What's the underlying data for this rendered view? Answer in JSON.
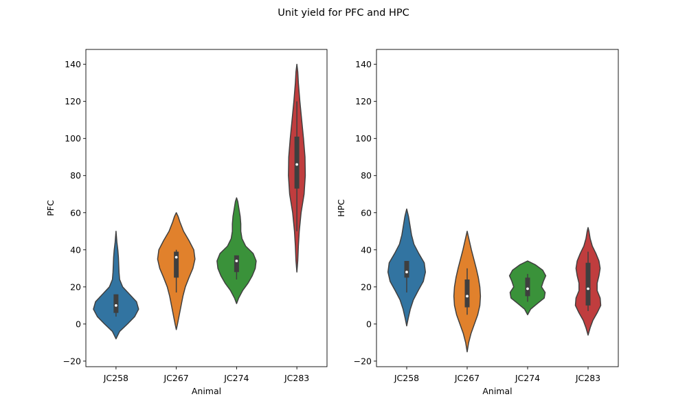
{
  "figure": {
    "title": "Unit yield for PFC and HPC"
  },
  "chart_data": [
    {
      "type": "violin",
      "title": "",
      "xlabel": "Animal",
      "ylabel": "PFC",
      "ylim": [
        -23,
        148
      ],
      "yticks": [
        -20,
        0,
        20,
        40,
        60,
        80,
        100,
        120,
        140
      ],
      "grid": false,
      "categories": [
        "JC258",
        "JC267",
        "JC274",
        "JC283"
      ],
      "violins": [
        {
          "category": "JC258",
          "color": "#3274a1",
          "range": [
            -8,
            50
          ],
          "median": 10,
          "q1": 6,
          "q3": 16,
          "whisker": [
            4,
            16
          ],
          "half_widths": [
            [
              -8,
              0.0
            ],
            [
              -4,
              0.12
            ],
            [
              0,
              0.38
            ],
            [
              4,
              0.62
            ],
            [
              8,
              0.75
            ],
            [
              12,
              0.68
            ],
            [
              16,
              0.45
            ],
            [
              20,
              0.22
            ],
            [
              24,
              0.12
            ],
            [
              28,
              0.1
            ],
            [
              32,
              0.09
            ],
            [
              36,
              0.08
            ],
            [
              40,
              0.06
            ],
            [
              44,
              0.03
            ],
            [
              48,
              0.01
            ],
            [
              50,
              0.0
            ]
          ]
        },
        {
          "category": "JC267",
          "color": "#e1812c",
          "range": [
            -3,
            60
          ],
          "median": 36,
          "q1": 25,
          "q3": 39,
          "whisker": [
            17,
            40
          ],
          "half_widths": [
            [
              -3,
              0.0
            ],
            [
              0,
              0.04
            ],
            [
              5,
              0.1
            ],
            [
              10,
              0.16
            ],
            [
              15,
              0.22
            ],
            [
              20,
              0.3
            ],
            [
              25,
              0.42
            ],
            [
              30,
              0.55
            ],
            [
              35,
              0.62
            ],
            [
              40,
              0.58
            ],
            [
              45,
              0.42
            ],
            [
              50,
              0.24
            ],
            [
              55,
              0.12
            ],
            [
              58,
              0.06
            ],
            [
              60,
              0.0
            ]
          ]
        },
        {
          "category": "JC274",
          "color": "#3a923a",
          "range": [
            11,
            68
          ],
          "median": 34,
          "q1": 28,
          "q3": 37,
          "whisker": [
            24,
            37
          ],
          "half_widths": [
            [
              11,
              0.0
            ],
            [
              14,
              0.07
            ],
            [
              18,
              0.2
            ],
            [
              22,
              0.38
            ],
            [
              26,
              0.52
            ],
            [
              30,
              0.62
            ],
            [
              34,
              0.65
            ],
            [
              38,
              0.55
            ],
            [
              42,
              0.3
            ],
            [
              46,
              0.18
            ],
            [
              50,
              0.14
            ],
            [
              54,
              0.14
            ],
            [
              58,
              0.12
            ],
            [
              62,
              0.08
            ],
            [
              66,
              0.04
            ],
            [
              68,
              0.0
            ]
          ]
        },
        {
          "category": "JC283",
          "color": "#c03d3e",
          "range": [
            28,
            140
          ],
          "median": 86,
          "q1": 73,
          "q3": 101,
          "whisker": [
            50,
            120
          ],
          "half_widths": [
            [
              28,
              0.0
            ],
            [
              34,
              0.03
            ],
            [
              42,
              0.05
            ],
            [
              50,
              0.08
            ],
            [
              60,
              0.14
            ],
            [
              70,
              0.24
            ],
            [
              80,
              0.28
            ],
            [
              90,
              0.27
            ],
            [
              100,
              0.22
            ],
            [
              110,
              0.16
            ],
            [
              120,
              0.1
            ],
            [
              130,
              0.05
            ],
            [
              136,
              0.03
            ],
            [
              140,
              0.0
            ]
          ]
        }
      ]
    },
    {
      "type": "violin",
      "title": "",
      "xlabel": "Animal",
      "ylabel": "HPC",
      "ylim": [
        -23,
        148
      ],
      "yticks": [
        -20,
        0,
        20,
        40,
        60,
        80,
        100,
        120,
        140
      ],
      "grid": false,
      "categories": [
        "JC258",
        "JC267",
        "JC274",
        "JC283"
      ],
      "violins": [
        {
          "category": "JC258",
          "color": "#3274a1",
          "range": [
            -1,
            62
          ],
          "median": 28,
          "q1": 25,
          "q3": 34,
          "whisker": [
            17,
            34
          ],
          "half_widths": [
            [
              -1,
              0.0
            ],
            [
              3,
              0.05
            ],
            [
              8,
              0.12
            ],
            [
              13,
              0.22
            ],
            [
              18,
              0.38
            ],
            [
              23,
              0.55
            ],
            [
              28,
              0.62
            ],
            [
              33,
              0.58
            ],
            [
              38,
              0.4
            ],
            [
              43,
              0.24
            ],
            [
              48,
              0.16
            ],
            [
              53,
              0.11
            ],
            [
              58,
              0.06
            ],
            [
              62,
              0.0
            ]
          ]
        },
        {
          "category": "JC267",
          "color": "#e1812c",
          "range": [
            -15,
            50
          ],
          "median": 15,
          "q1": 9,
          "q3": 24,
          "whisker": [
            5,
            30
          ],
          "half_widths": [
            [
              -15,
              0.0
            ],
            [
              -10,
              0.05
            ],
            [
              -5,
              0.13
            ],
            [
              0,
              0.24
            ],
            [
              5,
              0.35
            ],
            [
              10,
              0.42
            ],
            [
              15,
              0.44
            ],
            [
              20,
              0.42
            ],
            [
              25,
              0.37
            ],
            [
              30,
              0.3
            ],
            [
              35,
              0.22
            ],
            [
              40,
              0.14
            ],
            [
              45,
              0.07
            ],
            [
              50,
              0.0
            ]
          ]
        },
        {
          "category": "JC274",
          "color": "#3a923a",
          "range": [
            5,
            34
          ],
          "median": 19,
          "q1": 15,
          "q3": 25,
          "whisker": [
            12,
            27
          ],
          "half_widths": [
            [
              5,
              0.0
            ],
            [
              8,
              0.1
            ],
            [
              11,
              0.32
            ],
            [
              14,
              0.55
            ],
            [
              17,
              0.58
            ],
            [
              20,
              0.46
            ],
            [
              23,
              0.52
            ],
            [
              26,
              0.6
            ],
            [
              29,
              0.5
            ],
            [
              32,
              0.25
            ],
            [
              34,
              0.0
            ]
          ]
        },
        {
          "category": "JC283",
          "color": "#c03d3e",
          "range": [
            -6,
            52
          ],
          "median": 19,
          "q1": 10,
          "q3": 33,
          "whisker": [
            7,
            39
          ],
          "half_widths": [
            [
              -6,
              0.0
            ],
            [
              -2,
              0.07
            ],
            [
              2,
              0.16
            ],
            [
              6,
              0.3
            ],
            [
              10,
              0.42
            ],
            [
              14,
              0.4
            ],
            [
              18,
              0.3
            ],
            [
              22,
              0.3
            ],
            [
              26,
              0.36
            ],
            [
              30,
              0.4
            ],
            [
              34,
              0.36
            ],
            [
              38,
              0.26
            ],
            [
              42,
              0.14
            ],
            [
              46,
              0.07
            ],
            [
              50,
              0.03
            ],
            [
              52,
              0.0
            ]
          ]
        }
      ]
    }
  ]
}
